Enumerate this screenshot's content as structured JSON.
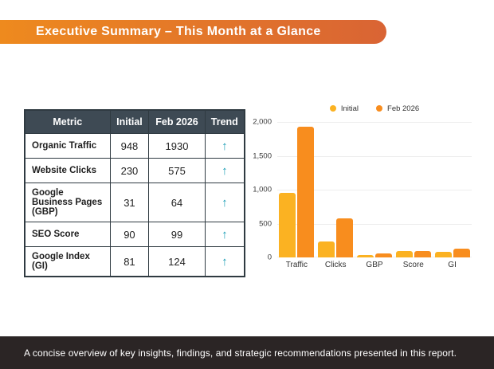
{
  "header": {
    "title": "Executive Summary – This Month at a Glance"
  },
  "metrics_table": {
    "columns": [
      "Metric",
      "Initial",
      "Feb 2026",
      "Trend"
    ],
    "trend_arrow_glyph": "↑",
    "rows": [
      {
        "metric": "Organic Traffic",
        "initial": "948",
        "feb_2026": "1930",
        "trend": "up"
      },
      {
        "metric": "Website Clicks",
        "initial": "230",
        "feb_2026": "575",
        "trend": "up"
      },
      {
        "metric": "Google Business Pages (GBP)",
        "initial": "31",
        "feb_2026": "64",
        "trend": "up"
      },
      {
        "metric": "SEO Score",
        "initial": "90",
        "feb_2026": "99",
        "trend": "up"
      },
      {
        "metric": "Google Index (GI)",
        "initial": "81",
        "feb_2026": "124",
        "trend": "up"
      }
    ]
  },
  "chart_data": {
    "type": "bar",
    "categories": [
      "Traffic",
      "Clicks",
      "GBP",
      "Score",
      "GI"
    ],
    "series": [
      {
        "name": "Initial",
        "color": "#FBB222",
        "values": [
          948,
          230,
          31,
          90,
          81
        ]
      },
      {
        "name": "Feb 2026",
        "color": "#F88D1E",
        "values": [
          1930,
          575,
          64,
          99,
          124
        ]
      }
    ],
    "ylim": [
      0,
      2000
    ],
    "yticks": [
      {
        "value": 0,
        "label": "0"
      },
      {
        "value": 500,
        "label": "500"
      },
      {
        "value": 1000,
        "label": "1,000"
      },
      {
        "value": 1500,
        "label": "1,500"
      },
      {
        "value": 2000,
        "label": "2,000"
      }
    ],
    "grid": true,
    "legend_position": "top"
  },
  "footer": {
    "text": "A concise overview of key insights, findings, and strategic recommendations presented in this report."
  },
  "colors": {
    "banner_gradient_start": "#EE8A1E",
    "banner_gradient_end": "#D96434",
    "table_header_bg": "#3E4A54",
    "table_border": "#2F3A41",
    "trend_arrow": "#1B9DB5",
    "footer_bg": "#2B2525",
    "gridline": "#EDEDED"
  }
}
